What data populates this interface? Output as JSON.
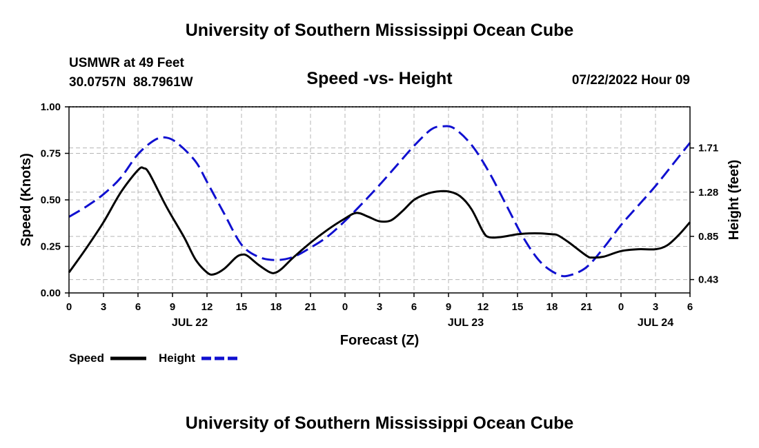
{
  "header": {
    "title": "University of Southern Mississippi Ocean Cube",
    "station_line1": "USMWR at 49 Feet",
    "station_line2": "30.0757N  88.7961W",
    "issued": "07/22/2022 Hour 09"
  },
  "footer": {
    "title": "University of Southern Mississippi Ocean Cube"
  },
  "colors": {
    "speed": "#000000",
    "height": "#1010d0",
    "grid": "#b4b4b4"
  },
  "chart_data": {
    "type": "line",
    "title": "Speed -vs- Height",
    "xlabel": "Forecast (Z)",
    "ylabel": "Speed (Knots)",
    "y2label": "Height (feet)",
    "xlim": [
      0,
      54
    ],
    "ylim": [
      0,
      1.0
    ],
    "y2lim": [
      0.3,
      2.11
    ],
    "x_ticks": [
      0,
      3,
      6,
      9,
      12,
      15,
      18,
      21,
      24,
      27,
      30,
      33,
      36,
      39,
      42,
      45,
      48,
      51,
      54
    ],
    "x_tick_labels": [
      "0",
      "3",
      "6",
      "9",
      "12",
      "15",
      "18",
      "21",
      "0",
      "3",
      "6",
      "9",
      "12",
      "15",
      "18",
      "21",
      "0",
      "3",
      "6"
    ],
    "day_labels": [
      {
        "x": 10.5,
        "label": "JUL 22"
      },
      {
        "x": 34.5,
        "label": "JUL 23"
      },
      {
        "x": 51,
        "label": "JUL 24"
      }
    ],
    "y_ticks": [
      0.0,
      0.25,
      0.5,
      0.75,
      1.0
    ],
    "y_tick_labels": [
      "0.00",
      "0.25",
      "0.50",
      "0.75",
      "1.00"
    ],
    "y2_ticks": [
      0.43,
      0.85,
      1.28,
      1.71
    ],
    "y2_tick_labels": [
      "0.43",
      "0.85",
      "1.28",
      "1.71"
    ],
    "grid": true,
    "legend": [
      {
        "name": "Speed",
        "style": "solid"
      },
      {
        "name": "Height",
        "style": "dashed"
      }
    ],
    "series": [
      {
        "name": "Speed",
        "axis": "left",
        "x": [
          0,
          1.5,
          3,
          4.5,
          6,
          6.5,
          7,
          8.5,
          10,
          11,
          12,
          12.6,
          13.5,
          14.5,
          15,
          15.5,
          16.5,
          17.5,
          18,
          18.5,
          19.5,
          21,
          22.5,
          24,
          25,
          26,
          27,
          28,
          29,
          30,
          31,
          32,
          33,
          34,
          35,
          36,
          36.5,
          37.5,
          39,
          40,
          41,
          42,
          42.5,
          43.5,
          45,
          45.5,
          46.5,
          48,
          49.5,
          51,
          52,
          53,
          54
        ],
        "values": [
          0.11,
          0.24,
          0.38,
          0.54,
          0.66,
          0.67,
          0.64,
          0.46,
          0.3,
          0.18,
          0.11,
          0.1,
          0.13,
          0.19,
          0.205,
          0.2,
          0.15,
          0.11,
          0.11,
          0.13,
          0.19,
          0.27,
          0.34,
          0.4,
          0.43,
          0.41,
          0.385,
          0.39,
          0.44,
          0.5,
          0.53,
          0.545,
          0.545,
          0.52,
          0.45,
          0.33,
          0.3,
          0.3,
          0.315,
          0.32,
          0.32,
          0.315,
          0.31,
          0.27,
          0.2,
          0.19,
          0.195,
          0.225,
          0.235,
          0.235,
          0.255,
          0.31,
          0.38
        ]
      },
      {
        "name": "Height",
        "axis": "right",
        "x": [
          0,
          1.5,
          3,
          4.5,
          6,
          7.5,
          8.5,
          9.5,
          11,
          12,
          13.5,
          15,
          16.5,
          18,
          19.5,
          21,
          22.5,
          24,
          25.5,
          27,
          28.5,
          30,
          31.5,
          32.5,
          33.5,
          35,
          36.5,
          38,
          39.5,
          41,
          42.5,
          43.5,
          45,
          46.5,
          48,
          49.5,
          51,
          52.5,
          54
        ],
        "values": [
          1.04,
          1.14,
          1.26,
          1.42,
          1.65,
          1.79,
          1.81,
          1.75,
          1.58,
          1.38,
          1.07,
          0.77,
          0.65,
          0.62,
          0.65,
          0.74,
          0.85,
          1.0,
          1.17,
          1.35,
          1.54,
          1.73,
          1.89,
          1.92,
          1.9,
          1.74,
          1.48,
          1.16,
          0.84,
          0.6,
          0.48,
          0.47,
          0.55,
          0.74,
          0.96,
          1.15,
          1.34,
          1.55,
          1.76
        ]
      }
    ]
  }
}
